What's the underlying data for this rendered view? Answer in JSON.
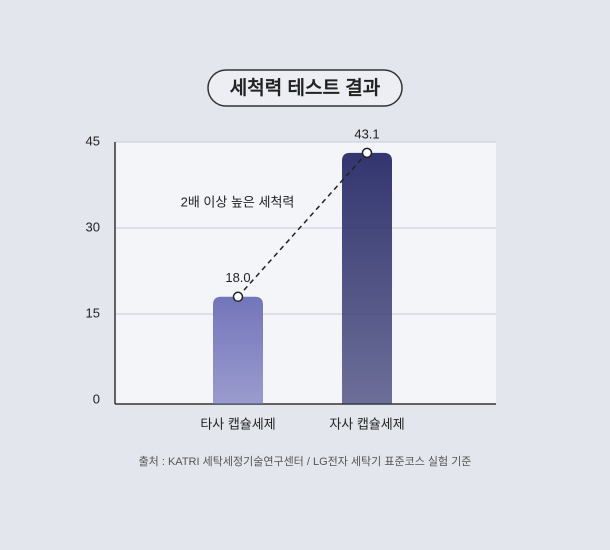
{
  "chart_data": {
    "type": "bar",
    "title": "세척력 테스트 결과",
    "categories": [
      "타사 캡슐세제",
      "자사 캡슐세제"
    ],
    "values": [
      18.0,
      43.1
    ],
    "value_labels": [
      "18.0",
      "43.1"
    ],
    "colors": [
      "#7375bb",
      "#33366f"
    ],
    "ylim": [
      0,
      45
    ],
    "yticks": [
      0,
      15,
      30,
      45
    ],
    "grid": true,
    "annotation": "2배 이상 높은 세척력",
    "source": "출처 : KATRI 세탁세정기술연구센터 / LG전자 세탁기 표준코스 실험 기준"
  }
}
